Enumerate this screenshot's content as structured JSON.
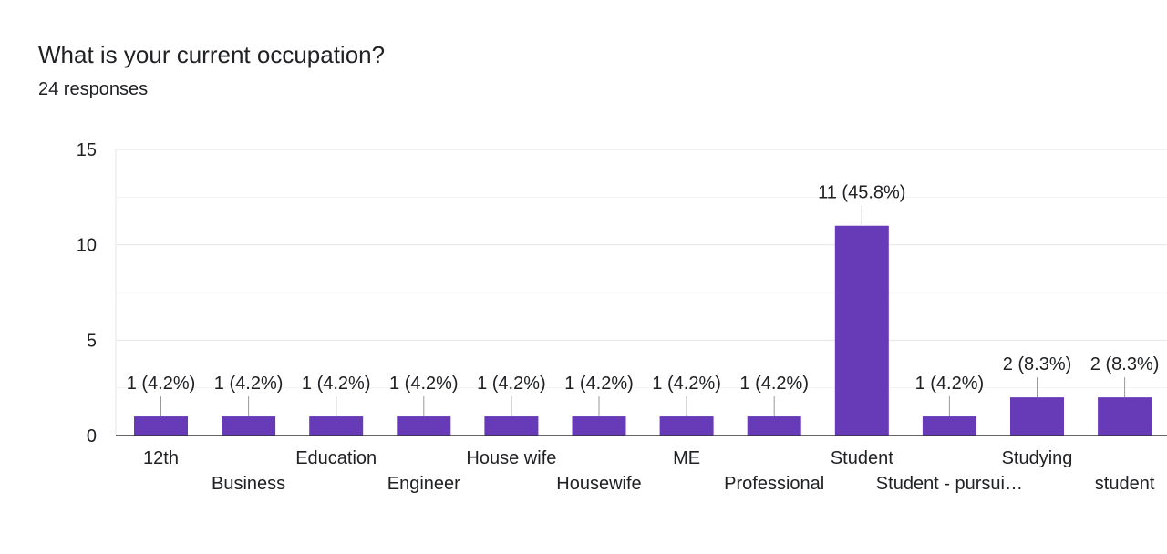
{
  "question": {
    "title": "What is your current occupation?",
    "responses": "24 responses"
  },
  "colors": {
    "bar": "#673ab7",
    "gridline": "#ebebeb",
    "axis": "#333333",
    "leader": "#999999",
    "text": "#202124"
  },
  "chart_data": {
    "type": "bar",
    "categories": [
      "12th",
      "Business",
      "Education",
      "Engineer",
      "House wife",
      "Housewife",
      "ME",
      "Professional",
      "Student",
      "Student - pursui…",
      "Studying",
      "student"
    ],
    "values": [
      1,
      1,
      1,
      1,
      1,
      1,
      1,
      1,
      11,
      1,
      2,
      2
    ],
    "data_labels": [
      "1 (4.2%)",
      "1 (4.2%)",
      "1 (4.2%)",
      "1 (4.2%)",
      "1 (4.2%)",
      "1 (4.2%)",
      "1 (4.2%)",
      "1 (4.2%)",
      "11 (45.8%)",
      "1 (4.2%)",
      "2 (8.3%)",
      "2 (8.3%)"
    ],
    "title": "",
    "xlabel": "",
    "ylabel": "",
    "ylim": [
      0,
      15
    ],
    "yticks": [
      0,
      5,
      10,
      15
    ],
    "grid": true,
    "legend": "none"
  }
}
